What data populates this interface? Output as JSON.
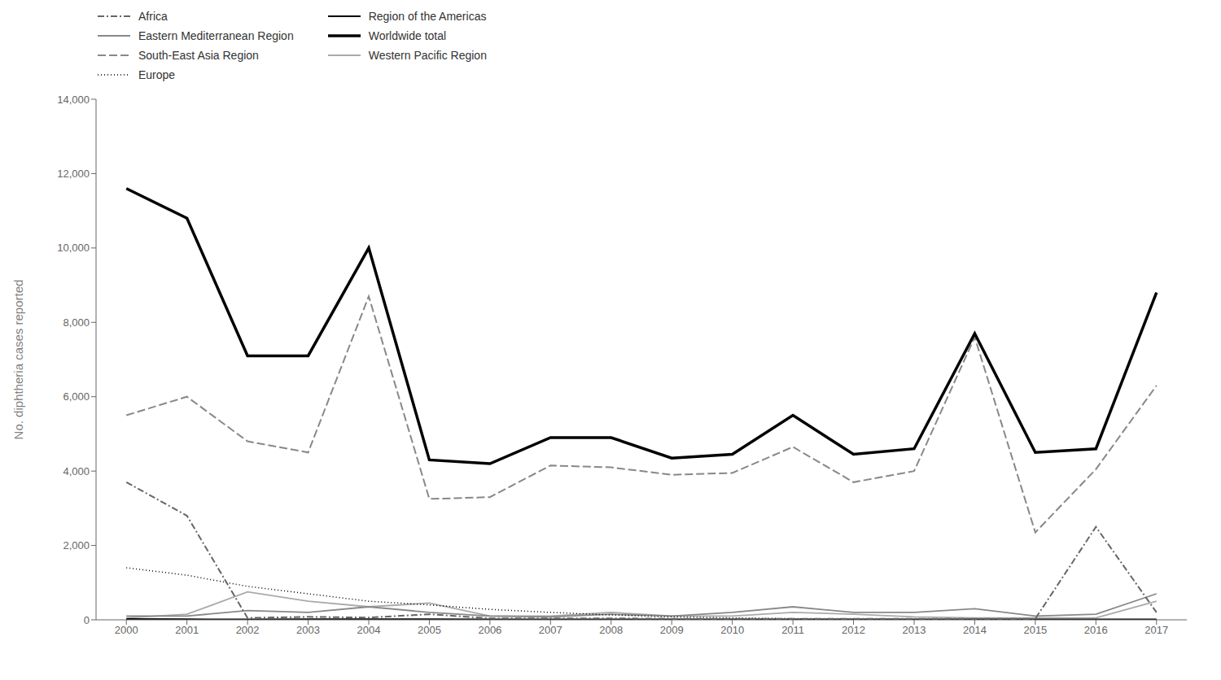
{
  "chart_data": {
    "type": "line",
    "y_label": "No. diphtheria cases reported",
    "x": [
      2000,
      2001,
      2002,
      2003,
      2004,
      2005,
      2006,
      2007,
      2008,
      2009,
      2010,
      2011,
      2012,
      2013,
      2014,
      2015,
      2016,
      2017
    ],
    "xlim": [
      1999.5,
      2017.5
    ],
    "xticks": [
      2000,
      2001,
      2002,
      2003,
      2004,
      2005,
      2006,
      2007,
      2008,
      2009,
      2010,
      2011,
      2012,
      2013,
      2014,
      2015,
      2016,
      2017
    ],
    "ylim": [
      0,
      14000
    ],
    "yticks": [
      0,
      {
        "value": 2000,
        "label": "2,000"
      },
      {
        "value": 4000,
        "label": "4,000"
      },
      {
        "value": 6000,
        "label": "6,000"
      },
      {
        "value": 8000,
        "label": "8,000"
      },
      {
        "value": 10000,
        "label": "10,000"
      },
      {
        "value": 12000,
        "label": "12,000"
      },
      {
        "value": 14000,
        "label": "14,000"
      }
    ],
    "grid": false,
    "legend": "top",
    "series": [
      {
        "name": "Western Pacific Region",
        "color": "#aaaaaa",
        "line_style": "solid",
        "values": [
          50,
          150,
          750,
          500,
          350,
          450,
          100,
          100,
          200,
          100,
          100,
          200,
          150,
          80,
          50,
          50,
          50,
          500
        ]
      },
      {
        "name": "Eastern Mediterranean Region",
        "color": "#888888",
        "line_style": "solid",
        "values": [
          100,
          100,
          250,
          200,
          350,
          200,
          100,
          80,
          150,
          100,
          200,
          350,
          200,
          200,
          300,
          100,
          150,
          700
        ]
      },
      {
        "name": "Region of the Americas",
        "color": "#000000",
        "line_style": "solid",
        "values": [
          20,
          15,
          10,
          15,
          15,
          15,
          10,
          10,
          10,
          10,
          10,
          10,
          10,
          10,
          10,
          10,
          10,
          10
        ]
      },
      {
        "name": "Europe",
        "color": "#000000",
        "line_style": "dotted",
        "values": [
          1400,
          1200,
          900,
          700,
          500,
          400,
          280,
          200,
          130,
          80,
          50,
          30,
          20,
          10,
          5,
          3,
          2,
          2
        ]
      },
      {
        "name": "Africa",
        "color": "#666666",
        "line_style": "dashdot",
        "values": [
          3700,
          2800,
          50,
          80,
          60,
          150,
          40,
          40,
          40,
          30,
          30,
          30,
          30,
          30,
          30,
          30,
          2500,
          200
        ]
      },
      {
        "name": "South-East Asia Region",
        "color": "#888888",
        "line_style": "dashed",
        "values": [
          5500,
          6000,
          4800,
          4500,
          8700,
          3250,
          3300,
          4150,
          4100,
          3900,
          3950,
          4650,
          3700,
          4000,
          7600,
          2350,
          4050,
          6300
        ]
      },
      {
        "name": "Worldwide total",
        "color": "#000000",
        "line_style": "solid",
        "values": [
          11600,
          10800,
          7100,
          7100,
          10000,
          4300,
          4200,
          4900,
          4900,
          4350,
          4450,
          5500,
          4450,
          4600,
          7700,
          4500,
          4600,
          8800
        ]
      }
    ]
  }
}
